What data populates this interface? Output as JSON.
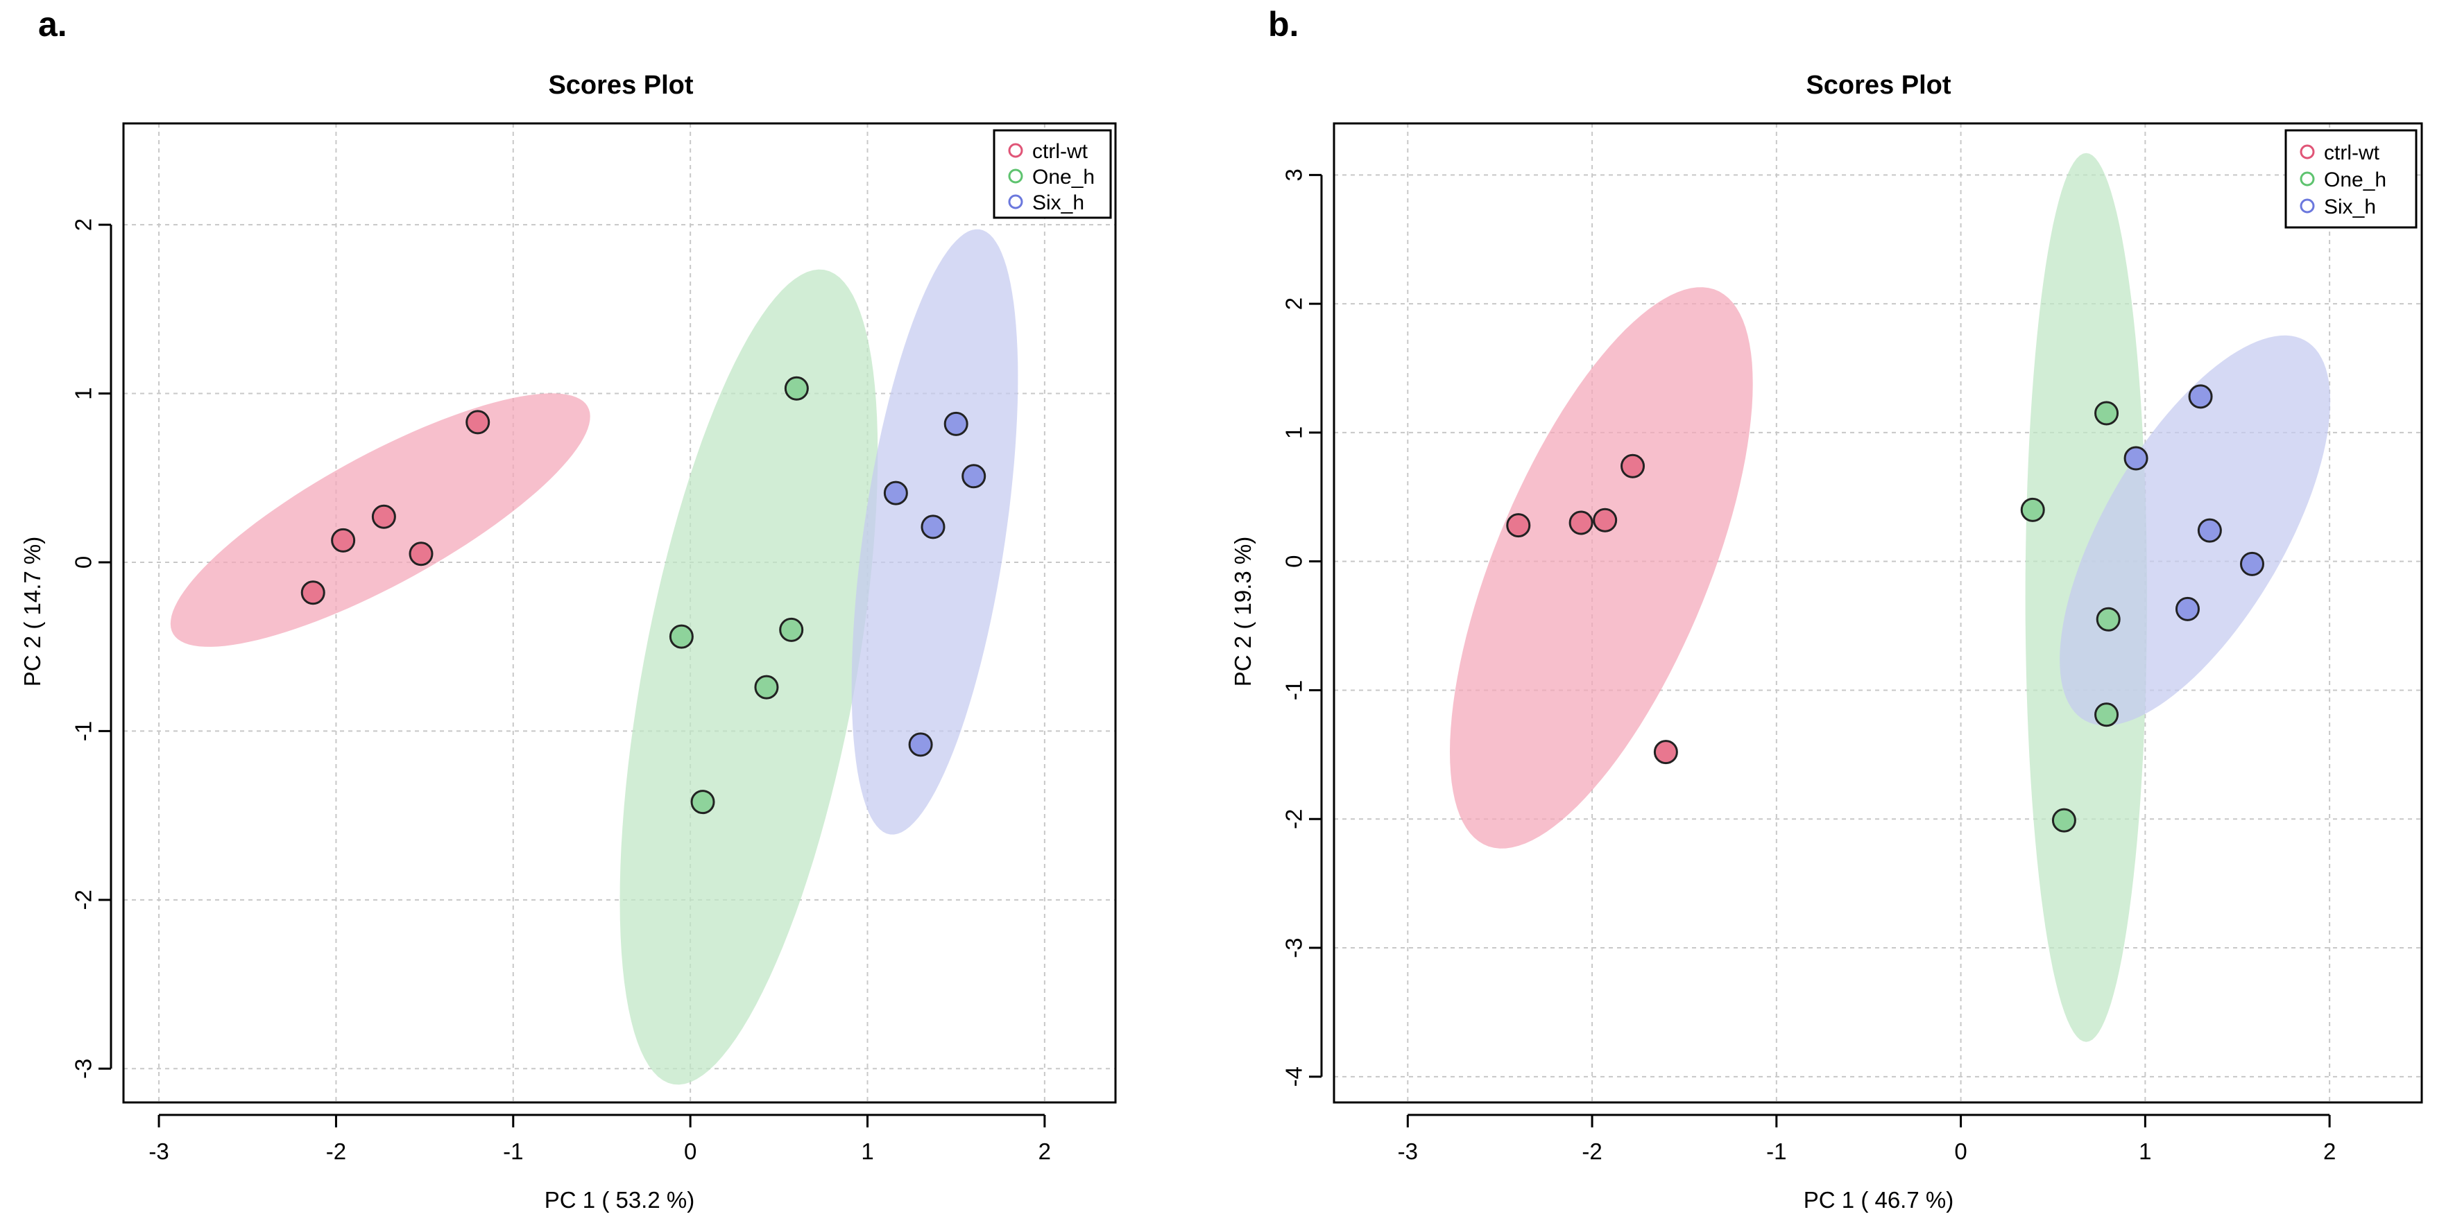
{
  "chart_data": [
    {
      "type": "scatter",
      "panel_label": "a.",
      "title": "Scores Plot",
      "xlabel": "PC 1 ( 53.2 %)",
      "ylabel": "PC 2 ( 14.7 %)",
      "xlim": [
        -3.2,
        2.4
      ],
      "ylim": [
        -3.2,
        2.6
      ],
      "xticks": [
        -3,
        -2,
        -1,
        0,
        1,
        2
      ],
      "yticks": [
        -3,
        -2,
        -1,
        0,
        1,
        2
      ],
      "grid": true,
      "legend_position": "top-right",
      "series": [
        {
          "name": "ctrl-wt",
          "point_color": "#e8778f",
          "ellipse_color": "#f4a6b8",
          "x": [
            -1.2,
            -1.73,
            -1.96,
            -1.52,
            -2.13
          ],
          "y": [
            0.83,
            0.27,
            0.13,
            0.05,
            -0.18
          ],
          "ellipse": {
            "cx": -1.75,
            "cy": 0.25,
            "semi_major": 1.35,
            "semi_minor": 0.38,
            "angle_deg": 30
          }
        },
        {
          "name": "One_h",
          "point_color": "#8ed39b",
          "ellipse_color": "#bfe6c5",
          "x": [
            0.6,
            -0.05,
            0.57,
            0.43,
            0.07
          ],
          "y": [
            1.03,
            -0.44,
            -0.4,
            -0.74,
            -1.42
          ],
          "ellipse": {
            "cx": 0.33,
            "cy": -0.68,
            "semi_major": 2.45,
            "semi_minor": 0.6,
            "angle_deg": 80
          }
        },
        {
          "name": "Six_h",
          "point_color": "#8f99e6",
          "ellipse_color": "#c5cbf0",
          "x": [
            1.5,
            1.6,
            1.16,
            1.37,
            1.3
          ],
          "y": [
            0.82,
            0.51,
            0.41,
            0.21,
            -1.08
          ],
          "ellipse": {
            "cx": 1.38,
            "cy": 0.18,
            "semi_major": 1.81,
            "semi_minor": 0.4,
            "angle_deg": 82
          }
        }
      ]
    },
    {
      "type": "scatter",
      "panel_label": "b.",
      "title": "Scores Plot",
      "xlabel": "PC 1 ( 46.7 %)",
      "ylabel": "PC 2 ( 19.3 %)",
      "xlim": [
        -3.4,
        2.5
      ],
      "ylim": [
        -4.2,
        3.4
      ],
      "xticks": [
        -3,
        -2,
        -1,
        0,
        1,
        2
      ],
      "yticks": [
        -4,
        -3,
        -2,
        -1,
        0,
        1,
        2,
        3
      ],
      "grid": true,
      "legend_position": "top-right",
      "series": [
        {
          "name": "ctrl-wt",
          "point_color": "#e8778f",
          "ellipse_color": "#f4a6b8",
          "x": [
            -1.78,
            -2.4,
            -2.06,
            -1.93,
            -1.6
          ],
          "y": [
            0.74,
            0.28,
            0.3,
            0.32,
            -1.48
          ],
          "ellipse": {
            "cx": -1.95,
            "cy": -0.05,
            "semi_major": 2.25,
            "semi_minor": 0.6,
            "angle_deg": 75
          }
        },
        {
          "name": "One_h",
          "point_color": "#8ed39b",
          "ellipse_color": "#bfe6c5",
          "x": [
            0.79,
            0.39,
            0.8,
            0.79,
            0.56
          ],
          "y": [
            1.15,
            0.4,
            -0.45,
            -1.19,
            -2.01
          ],
          "ellipse": {
            "cx": 0.68,
            "cy": -0.28,
            "semi_major": 3.45,
            "semi_minor": 0.33,
            "angle_deg": 90
          }
        },
        {
          "name": "Six_h",
          "point_color": "#8f99e6",
          "ellipse_color": "#c5cbf0",
          "x": [
            1.3,
            0.95,
            1.35,
            1.58,
            1.23
          ],
          "y": [
            1.28,
            0.8,
            0.24,
            -0.02,
            -0.37
          ],
          "ellipse": {
            "cx": 1.27,
            "cy": 0.24,
            "semi_major": 1.6,
            "semi_minor": 0.52,
            "angle_deg": 70
          }
        }
      ]
    }
  ]
}
